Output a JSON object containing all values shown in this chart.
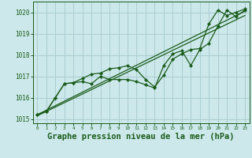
{
  "bg_color": "#cce8ea",
  "grid_color": "#aacdd2",
  "line_color": "#1a5c1a",
  "xlabel": "Graphe pression niveau de la mer (hPa)",
  "xlabel_fontsize": 7.5,
  "ylim": [
    1014.8,
    1020.5
  ],
  "xlim": [
    -0.5,
    23.5
  ],
  "yticks": [
    1015,
    1016,
    1017,
    1018,
    1019,
    1020
  ],
  "xticks": [
    0,
    1,
    2,
    3,
    4,
    5,
    6,
    7,
    8,
    9,
    10,
    11,
    12,
    13,
    14,
    15,
    16,
    17,
    18,
    19,
    20,
    21,
    22,
    23
  ],
  "trend1_x": [
    0,
    23
  ],
  "trend1_y": [
    1015.2,
    1020.05
  ],
  "trend2_x": [
    0,
    23
  ],
  "trend2_y": [
    1015.15,
    1019.85
  ],
  "line_wavy_x": [
    0,
    1,
    2,
    3,
    4,
    5,
    6,
    7,
    8,
    9,
    10,
    11,
    12,
    13,
    14,
    15,
    16,
    17,
    18,
    19,
    20,
    21,
    22,
    23
  ],
  "line_wavy_y": [
    1015.2,
    1015.35,
    1016.0,
    1016.65,
    1016.7,
    1016.75,
    1016.65,
    1017.0,
    1016.85,
    1016.85,
    1016.85,
    1016.75,
    1016.6,
    1016.45,
    1017.5,
    1018.05,
    1018.2,
    1017.5,
    1018.25,
    1018.55,
    1019.35,
    1020.1,
    1019.8,
    1020.1
  ],
  "line_zigzag_x": [
    0,
    1,
    2,
    3,
    4,
    5,
    6,
    7,
    8,
    9,
    10,
    11,
    12,
    13,
    14,
    15,
    16,
    17,
    18,
    19,
    20,
    21,
    22,
    23
  ],
  "line_zigzag_y": [
    1015.2,
    1015.35,
    1016.0,
    1016.65,
    1016.7,
    1016.9,
    1017.1,
    1017.15,
    1017.35,
    1017.4,
    1017.5,
    1017.3,
    1016.85,
    1016.5,
    1017.05,
    1017.8,
    1018.05,
    1018.25,
    1018.3,
    1019.45,
    1020.1,
    1019.85,
    1020.0,
    1020.15
  ]
}
